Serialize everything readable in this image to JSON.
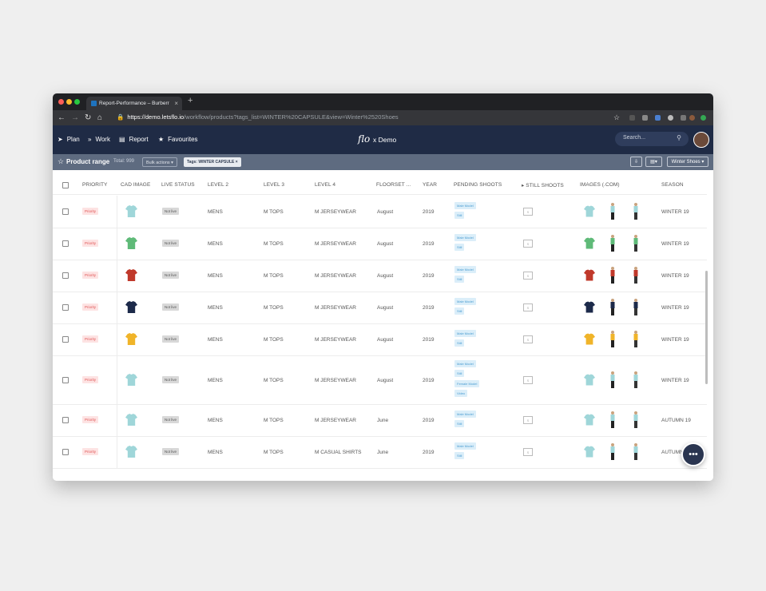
{
  "browser": {
    "tab_title": "Report-Performance – Burberr",
    "tab_close": "×",
    "new_tab": "+",
    "url_domain": "https://demo.letsflo.io",
    "url_path": "/workflow/products?tags_list=WINTER%20CAPSULE&view=Winter%2520Shoes"
  },
  "nav": {
    "plan": "Plan",
    "work": "Work",
    "report": "Report",
    "favourites": "Favourites",
    "logo_text": "flo",
    "logo_suffix": "x Demo",
    "search_placeholder": "Search..."
  },
  "subbar": {
    "title": "Product range",
    "total": "Total: 999",
    "bulk_actions": "Bulk actions ▾",
    "tag": "Tags: WINTER CAPSULE ×",
    "view": "Winter Shoes ▾",
    "chart_btn": "▾"
  },
  "columns": [
    "PRIORITY",
    "CAD IMAGE",
    "LIVE STATUS",
    "LEVEL 2",
    "LEVEL 3",
    "LEVEL 4",
    "FLOORSET ...",
    "YEAR",
    "PENDING SHOOTS",
    "STILL SHOOTS",
    "IMAGES (.COM)",
    "SEASON"
  ],
  "rows": [
    {
      "priority": "Priority",
      "live": "Not live",
      "level2": "MENS",
      "level3": "M TOPS",
      "level4": "M JERSEYWEAR",
      "floorset": "August",
      "year": "2019",
      "pending": [
        "Male Model",
        "Still"
      ],
      "still": "S",
      "season": "WINTER 19",
      "color": "#9fd6d9"
    },
    {
      "priority": "Priority",
      "live": "Not live",
      "level2": "MENS",
      "level3": "M TOPS",
      "level4": "M JERSEYWEAR",
      "floorset": "August",
      "year": "2019",
      "pending": [
        "Male Model",
        "Still"
      ],
      "still": "S",
      "season": "WINTER 19",
      "color": "#5fba78"
    },
    {
      "priority": "Priority",
      "live": "Not live",
      "level2": "MENS",
      "level3": "M TOPS",
      "level4": "M JERSEYWEAR",
      "floorset": "August",
      "year": "2019",
      "pending": [
        "Male Model",
        "Still"
      ],
      "still": "S",
      "season": "WINTER 19",
      "color": "#c0392b"
    },
    {
      "priority": "Priority",
      "live": "Not live",
      "level2": "MENS",
      "level3": "M TOPS",
      "level4": "M JERSEYWEAR",
      "floorset": "August",
      "year": "2019",
      "pending": [
        "Male Model",
        "Still"
      ],
      "still": "S",
      "season": "WINTER 19",
      "color": "#1c2a4a"
    },
    {
      "priority": "Priority",
      "live": "Not live",
      "level2": "MENS",
      "level3": "M TOPS",
      "level4": "M JERSEYWEAR",
      "floorset": "August",
      "year": "2019",
      "pending": [
        "Male Model",
        "Still"
      ],
      "still": "S",
      "season": "WINTER 19",
      "color": "#f0b429"
    },
    {
      "priority": "Priority",
      "live": "Not live",
      "level2": "MENS",
      "level3": "M TOPS",
      "level4": "M JERSEYWEAR",
      "floorset": "August",
      "year": "2019",
      "pending": [
        "Male Model",
        "Still",
        "Female Model",
        "Video"
      ],
      "still": "S",
      "season": "WINTER 19",
      "color": "#9fd6d9"
    },
    {
      "priority": "Priority",
      "live": "Not live",
      "level2": "MENS",
      "level3": "M TOPS",
      "level4": "M JERSEYWEAR",
      "floorset": "June",
      "year": "2019",
      "pending": [
        "Male Model",
        "Still"
      ],
      "still": "S",
      "season": "AUTUMN 19",
      "color": "#9fd6d9"
    },
    {
      "priority": "Priority",
      "live": "Not live",
      "level2": "MENS",
      "level3": "M TOPS",
      "level4": "M CASUAL SHIRTS",
      "floorset": "June",
      "year": "2019",
      "pending": [
        "Male Model",
        "Still"
      ],
      "still": "S",
      "season": "AUTUMN 19",
      "color": "#9fd6d9"
    }
  ],
  "chat_icon": "•••"
}
